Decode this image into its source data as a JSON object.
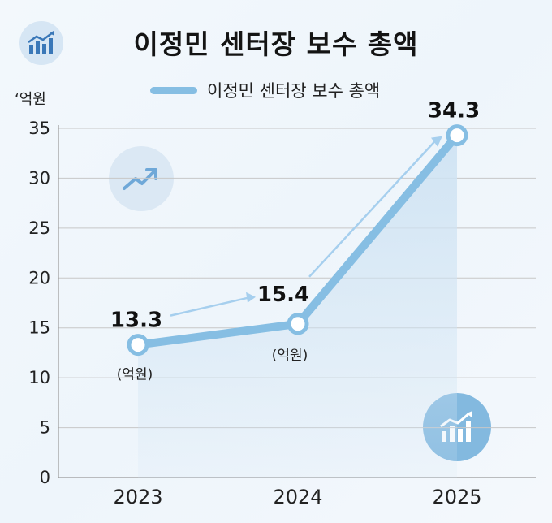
{
  "chart_data": {
    "type": "line",
    "title": "이정민 센터장 보수 총액",
    "ylabel": "‘억원",
    "xlabel": "",
    "categories": [
      "2023",
      "2024",
      "2025"
    ],
    "series": [
      {
        "name": "이정민 센터장 보수 총액",
        "values": [
          13.3,
          15.4,
          34.3
        ]
      }
    ],
    "value_labels": [
      "13.3",
      "15.4",
      "34.3"
    ],
    "annotations": [
      "(억원)",
      "(억원)"
    ],
    "ylim": [
      0,
      35
    ],
    "yticks": [
      "0",
      "5",
      "10",
      "15",
      "20",
      "25",
      "30",
      "35"
    ],
    "grid": true,
    "legend": "top-center",
    "colors": {
      "line": "#86bee3",
      "area": "#cfe3f3",
      "grid": "#c7c7c7",
      "marker_fill": "#ffffff"
    }
  },
  "icons": [
    "trend-chart-icon",
    "trend-arrow-icon",
    "growth-bars-icon"
  ]
}
